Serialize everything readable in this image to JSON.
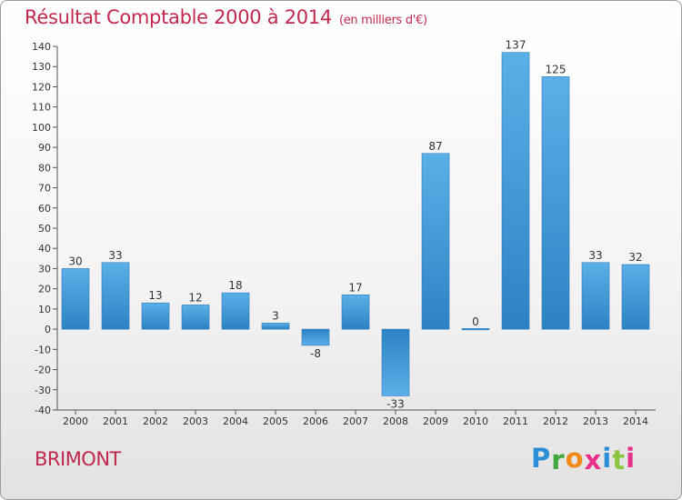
{
  "header": {
    "title": "Résultat Comptable 2000 à 2014",
    "subtitle": "(en milliers d'€)"
  },
  "footer": {
    "commune": "BRIMONT",
    "logo_text": "Proxiti",
    "logo_letters": [
      {
        "char": "P",
        "color": "#2a8fd6"
      },
      {
        "char": "r",
        "color": "#3ea63c"
      },
      {
        "char": "o",
        "color": "#f08a1c"
      },
      {
        "char": "x",
        "color": "#e8318a"
      },
      {
        "char": "i",
        "color": "#2a8fd6"
      },
      {
        "char": "t",
        "color": "#8cc63f"
      },
      {
        "char": "i",
        "color": "#e8318a"
      }
    ]
  },
  "colors": {
    "accent": "#c0284e",
    "bar_light": "#5eb2e8",
    "bar_dark": "#2a7fc0"
  },
  "chart_data": {
    "type": "bar",
    "title": "Résultat Comptable 2000 à 2014",
    "subtitle": "(en milliers d'€)",
    "categories": [
      "2000",
      "2001",
      "2002",
      "2003",
      "2004",
      "2005",
      "2006",
      "2007",
      "2008",
      "2009",
      "2010",
      "2011",
      "2012",
      "2013",
      "2014"
    ],
    "values": [
      30,
      33,
      13,
      12,
      18,
      3,
      -8,
      17,
      -33,
      87,
      0,
      137,
      125,
      33,
      32
    ],
    "ylim": [
      -40,
      140
    ],
    "yticks": [
      140,
      130,
      120,
      110,
      100,
      90,
      80,
      70,
      60,
      50,
      40,
      30,
      20,
      10,
      0,
      -10,
      -20,
      -30,
      -40
    ],
    "grid": false,
    "xlabel": "",
    "ylabel": ""
  }
}
